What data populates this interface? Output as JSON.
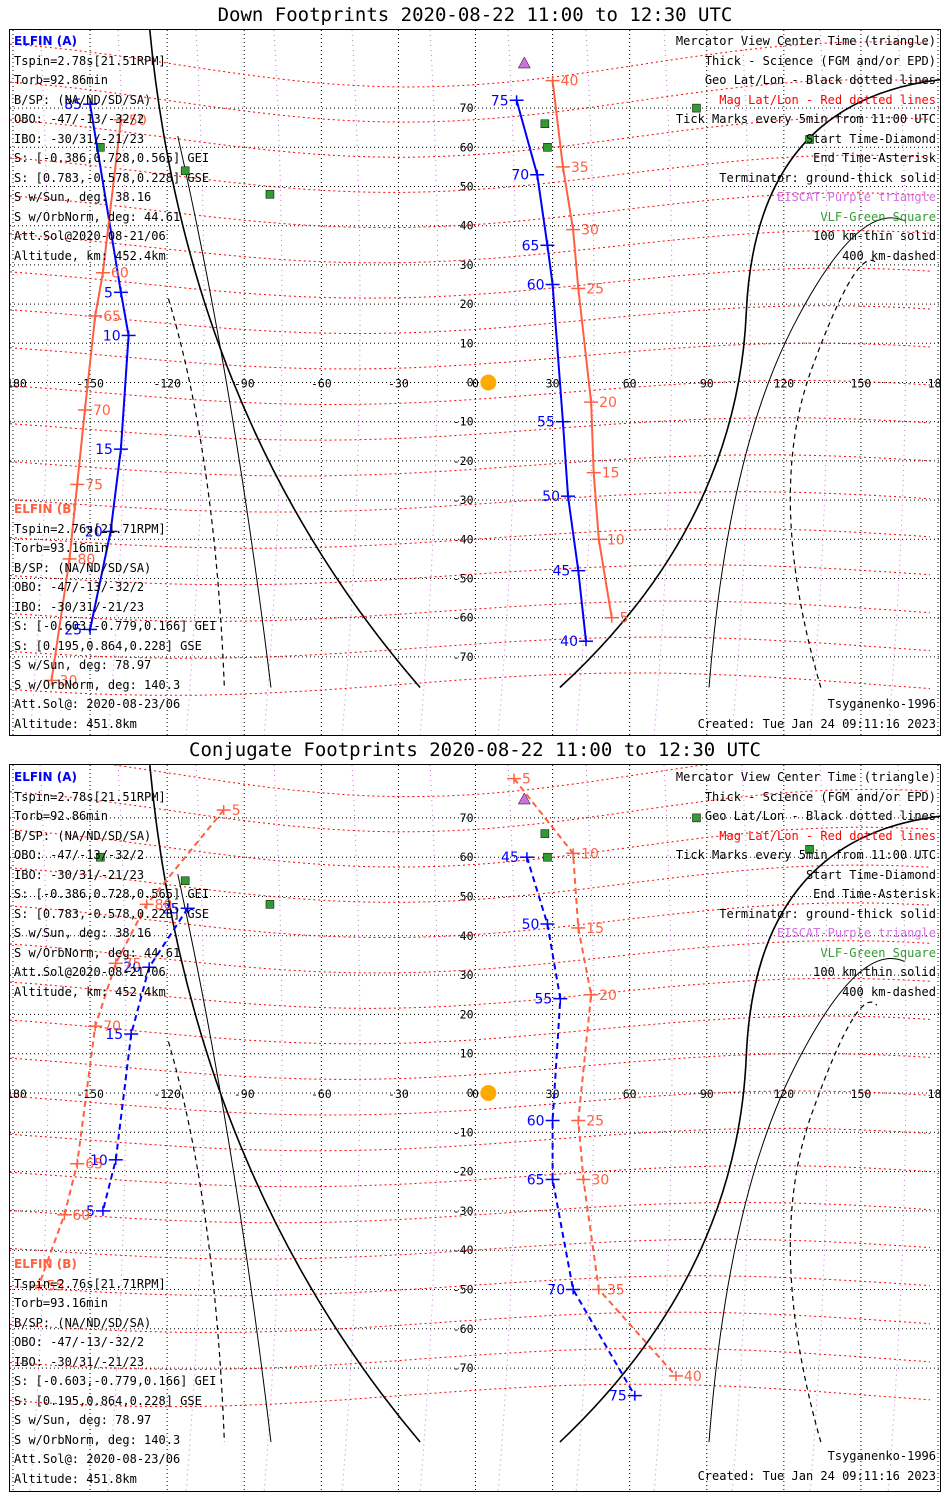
{
  "colors": {
    "elfin_a": "#0000ff",
    "elfin_b": "#ff6040",
    "terminator": "#000000",
    "mag_grid": "#ff0000",
    "geo_grid": "#000000",
    "eiscat": "#d070e0",
    "vlf": "#339933",
    "sun": "#ffaa00"
  },
  "panels": [
    {
      "title": "Down Footprints 2020-08-22 11:00 to 12:30 UTC",
      "elfin_a": [
        "ELFIN (A)",
        "Tspin=2.78s[21.51RPM]",
        "Torb=92.86min",
        "B/SP: (NA/ND/SD/SA)",
        "OBO: -47/-13/-32/2",
        "IBO: -30/31/-21/23",
        "S: [-0.386,0.728,0.565] GEI",
        "S: [0.783,-0.578,0.228] GSE",
        "S w/Sun, deg: 38.16",
        "S w/OrbNorm, deg: 44.61",
        "Att.Sol@2020-08-21/06",
        "Altitude, km: 452.4km"
      ],
      "elfin_b": [
        "ELFIN (B)",
        "Tspin=2.76s[21.71RPM]",
        "Torb=93.16min",
        "B/SP: (NA/ND/SD/SA)",
        "OBO: -47/-13/-32/2",
        "IBO: -30/31/-21/23",
        "S: [-0.603,-0.779,0.166] GEI",
        "S: [0.195,0.864,0.228] GSE",
        "S w/Sun, deg: 78.97",
        "S w/OrbNorm, deg: 140.3",
        "Att.Sol@: 2020-08-23/06",
        "Altitude: 451.8km"
      ],
      "legend": [
        "Mercator View Center Time (triangle)",
        "Thick - Science (FGM and/or EPD)",
        "Geo Lat/Lon - Black dotted lines",
        "Mag Lat/Lon - Red dotted lines",
        "Tick Marks every 5min from 11:00 UTC",
        "Start Time-Diamond",
        "End Time-Asterisk",
        "Terminator: ground-thick solid",
        "EISCAT-Purple triangle",
        "VLF-Green Square",
        "100 km-thin solid",
        "400 km-dashed"
      ],
      "model": "Tsyganenko-1996",
      "created": "Created: Tue Jan 24 09:11:16 2023"
    },
    {
      "title": "Conjugate Footprints 2020-08-22 11:00 to 12:30 UTC",
      "elfin_a": [
        "ELFIN (A)",
        "Tspin=2.78s[21.51RPM]",
        "Torb=92.86min",
        "B/SP: (NA/ND/SD/SA)",
        "OBO: -47/-13/-32/2",
        "IBO: -30/31/-21/23",
        "S: [-0.386,0.728,0.565] GEI",
        "S: [0.783,-0.578,0.228] GSE",
        "S w/Sun, deg: 38.16",
        "S w/OrbNorm, deg: 44.61",
        "Att.Sol@2020-08-21/06",
        "Altitude, km: 452.4km"
      ],
      "elfin_b": [
        "ELFIN (B)",
        "Tspin=2.76s[21.71RPM]",
        "Torb=93.16min",
        "B/SP: (NA/ND/SD/SA)",
        "OBO: -47/-13/-32/2",
        "IBO: -30/31/-21/23",
        "S: [-0.603,-0.779,0.166] GEI",
        "S: [0.195,0.864,0.228] GSE",
        "S w/Sun, deg: 78.97",
        "S w/OrbNorm, deg: 140.3",
        "Att.Sol@: 2020-08-23/06",
        "Altitude: 451.8km"
      ],
      "legend": [
        "Mercator View Center Time (triangle)",
        "Thick - Science (FGM and/or EPD)",
        "Geo Lat/Lon - Black dotted lines",
        "Mag Lat/Lon - Red dotted lines",
        "Tick Marks every 5min from 11:00 UTC",
        "Start Time-Diamond",
        "End Time-Asterisk",
        "Terminator: ground-thick solid",
        "EISCAT-Purple triangle",
        "VLF-Green Square",
        "100 km-thin solid",
        "400 km-dashed"
      ],
      "model": "Tsyganenko-1996",
      "created": "Created: Tue Jan 24 09:11:16 2023"
    }
  ],
  "chart_data": [
    {
      "type": "scatter",
      "title": "Down Footprints 2020-08-22 11:00 to 12:30 UTC",
      "x_ticks": [
        "-180",
        "-150",
        "-120",
        "-90",
        "-60",
        "-30",
        "0",
        "30",
        "60",
        "90",
        "120",
        "150",
        "180"
      ],
      "y_ticks": [
        "70",
        "60",
        "50",
        "40",
        "30",
        "20",
        "10",
        "0",
        "-10",
        "-20",
        "-30",
        "-40",
        "-50",
        "-60",
        "-70"
      ],
      "xlim": [
        -180,
        180
      ],
      "ylim": [
        -80,
        80
      ],
      "grid": true,
      "series": [
        {
          "name": "ELFIN (A)",
          "ticks": [
            {
              "label": "85",
              "lon": -150,
              "lat": 71
            },
            {
              "label": "5",
              "lon": -138,
              "lat": 23
            },
            {
              "label": "10",
              "lon": -135,
              "lat": 12
            },
            {
              "label": "15",
              "lon": -138,
              "lat": -17
            },
            {
              "label": "20",
              "lon": -142,
              "lat": -38
            },
            {
              "label": "25",
              "lon": -150,
              "lat": -63
            },
            {
              "label": "75",
              "lon": 16,
              "lat": 72
            },
            {
              "label": "70",
              "lon": 24,
              "lat": 53
            },
            {
              "label": "65",
              "lon": 28,
              "lat": 35
            },
            {
              "label": "60",
              "lon": 30,
              "lat": 25
            },
            {
              "label": "55",
              "lon": 34,
              "lat": -10
            },
            {
              "label": "50",
              "lon": 36,
              "lat": -29
            },
            {
              "label": "45",
              "lon": 40,
              "lat": -48
            },
            {
              "label": "40",
              "lon": 43,
              "lat": -66
            }
          ]
        },
        {
          "name": "ELFIN (B)",
          "ticks": [
            {
              "label": "50",
              "lon": -138,
              "lat": 67
            },
            {
              "label": "60",
              "lon": -145,
              "lat": 28
            },
            {
              "label": "65",
              "lon": -148,
              "lat": 17
            },
            {
              "label": "70",
              "lon": -152,
              "lat": -7
            },
            {
              "label": "75",
              "lon": -155,
              "lat": -26
            },
            {
              "label": "80",
              "lon": -158,
              "lat": -45
            },
            {
              "label": "30",
              "lon": -165,
              "lat": -76
            },
            {
              "label": "40",
              "lon": 30,
              "lat": 77
            },
            {
              "label": "35",
              "lon": 34,
              "lat": 55
            },
            {
              "label": "30",
              "lon": 38,
              "lat": 39
            },
            {
              "label": "25",
              "lon": 40,
              "lat": 24
            },
            {
              "label": "20",
              "lon": 45,
              "lat": -5
            },
            {
              "label": "15",
              "lon": 46,
              "lat": -23
            },
            {
              "label": "10",
              "lon": 48,
              "lat": -40
            },
            {
              "label": "5",
              "lon": 53,
              "lat": -60
            }
          ]
        }
      ],
      "stations": {
        "eiscat": [
          {
            "lon": 19,
            "lat": 79
          },
          {
            "lon": 18,
            "lat": 69
          }
        ],
        "vlf": [
          {
            "lon": -146,
            "lat": 60
          },
          {
            "lon": -113,
            "lat": 54
          },
          {
            "lon": -80,
            "lat": 48
          },
          {
            "lon": 27,
            "lat": 66
          },
          {
            "lon": 28,
            "lat": 60
          },
          {
            "lon": 86,
            "lat": 70
          },
          {
            "lon": 130,
            "lat": 62
          }
        ]
      }
    },
    {
      "type": "scatter",
      "title": "Conjugate Footprints 2020-08-22 11:00 to 12:30 UTC",
      "x_ticks": [
        "-180",
        "-150",
        "-120",
        "-90",
        "-60",
        "-30",
        "0",
        "30",
        "60",
        "90",
        "120",
        "150",
        "180"
      ],
      "y_ticks": [
        "70",
        "60",
        "50",
        "40",
        "30",
        "20",
        "10",
        "0",
        "-10",
        "-20",
        "-30",
        "-40",
        "-50",
        "-60",
        "-70"
      ],
      "xlim": [
        -180,
        180
      ],
      "ylim": [
        -80,
        80
      ],
      "grid": true,
      "series": [
        {
          "name": "ELFIN (A)",
          "ticks": [
            {
              "label": "25",
              "lon": -112,
              "lat": 47
            },
            {
              "label": "20",
              "lon": -127,
              "lat": 32
            },
            {
              "label": "15",
              "lon": -134,
              "lat": 15
            },
            {
              "label": "10",
              "lon": -140,
              "lat": -17
            },
            {
              "label": "5",
              "lon": -145,
              "lat": -30
            },
            {
              "label": "45",
              "lon": 20,
              "lat": 60
            },
            {
              "label": "50",
              "lon": 28,
              "lat": 43
            },
            {
              "label": "55",
              "lon": 33,
              "lat": 24
            },
            {
              "label": "60",
              "lon": 30,
              "lat": -7
            },
            {
              "label": "65",
              "lon": 30,
              "lat": -22
            },
            {
              "label": "70",
              "lon": 38,
              "lat": -50
            },
            {
              "label": "75",
              "lon": 62,
              "lat": -77
            }
          ]
        },
        {
          "name": "ELFIN (B)",
          "ticks": [
            {
              "label": "5",
              "lon": -98,
              "lat": 72
            },
            {
              "label": "80",
              "lon": -128,
              "lat": 48
            },
            {
              "label": "75",
              "lon": -140,
              "lat": 33
            },
            {
              "label": "70",
              "lon": -148,
              "lat": 17
            },
            {
              "label": "65",
              "lon": -155,
              "lat": -18
            },
            {
              "label": "60",
              "lon": -160,
              "lat": -31
            },
            {
              "label": "55",
              "lon": -170,
              "lat": -49
            },
            {
              "label": "5",
              "lon": 15,
              "lat": 80
            },
            {
              "label": "10",
              "lon": 38,
              "lat": 61
            },
            {
              "label": "15",
              "lon": 40,
              "lat": 42
            },
            {
              "label": "20",
              "lon": 45,
              "lat": 25
            },
            {
              "label": "25",
              "lon": 40,
              "lat": -7
            },
            {
              "label": "30",
              "lon": 42,
              "lat": -22
            },
            {
              "label": "35",
              "lon": 48,
              "lat": -50
            },
            {
              "label": "40",
              "lon": 78,
              "lat": -72
            }
          ]
        }
      ],
      "stations": {
        "eiscat": [
          {
            "lon": 19,
            "lat": 79
          },
          {
            "lon": 18,
            "lat": 69
          }
        ],
        "vlf": [
          {
            "lon": -146,
            "lat": 60
          },
          {
            "lon": -113,
            "lat": 54
          },
          {
            "lon": -80,
            "lat": 48
          },
          {
            "lon": 27,
            "lat": 66
          },
          {
            "lon": 28,
            "lat": 60
          },
          {
            "lon": 86,
            "lat": 70
          },
          {
            "lon": 130,
            "lat": 62
          }
        ]
      }
    }
  ]
}
